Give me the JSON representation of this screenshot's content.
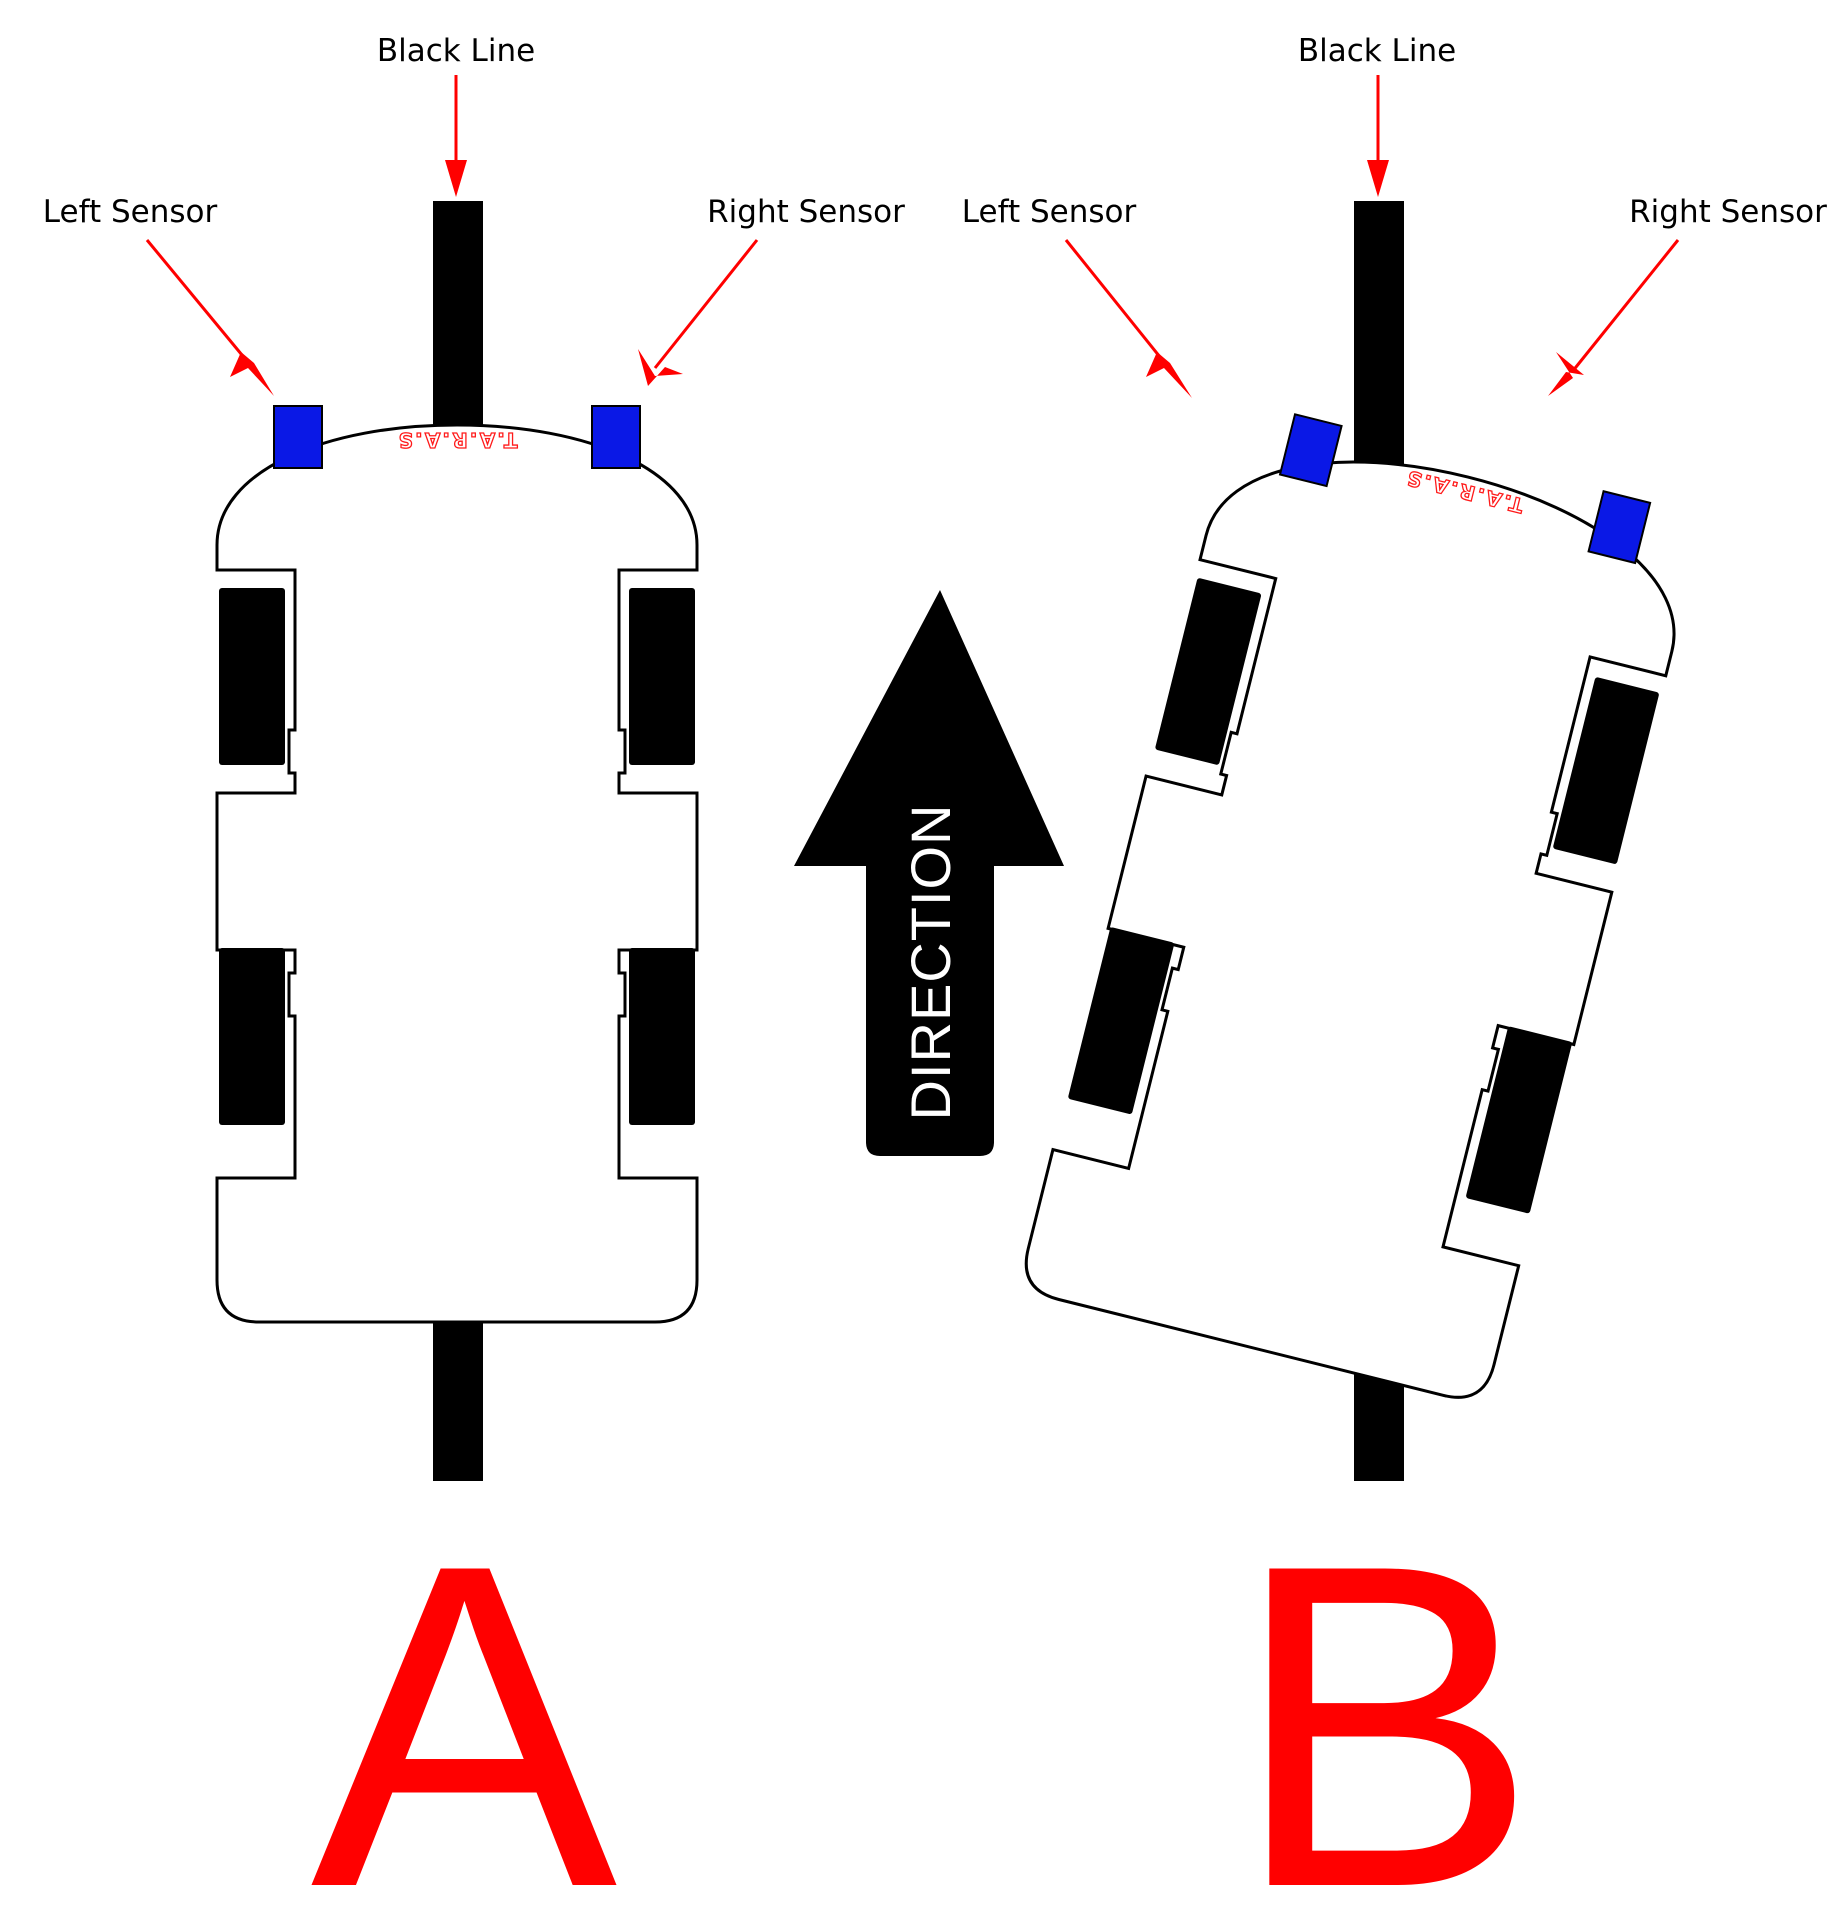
{
  "labels": {
    "black_line": "Black Line",
    "left_sensor": "Left Sensor",
    "right_sensor": "Right Sensor",
    "robot_name": "T.A.R.A.S",
    "direction": "DIRECTION"
  },
  "panels": [
    {
      "letter": "A"
    },
    {
      "letter": "B"
    }
  ],
  "colors": {
    "annotation": "#ff0000",
    "sensor": "#0a18e6",
    "line": "#000000",
    "robot_body": "#ffffff"
  }
}
